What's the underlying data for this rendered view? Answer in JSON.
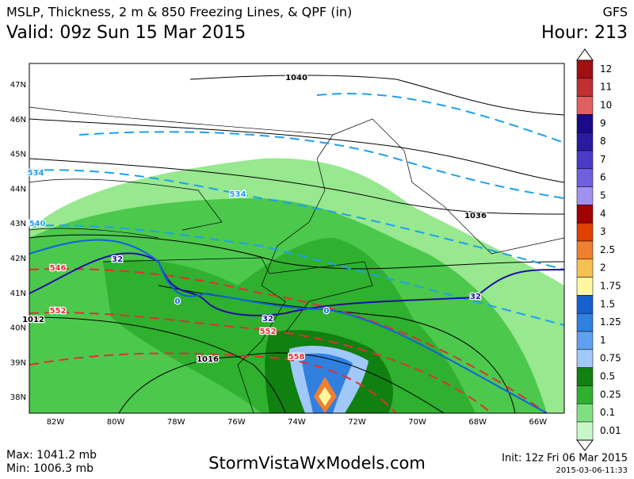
{
  "header": {
    "title": "MSLP, Thickness, 2 m & 850 Freezing Lines, & QPF (in)",
    "model": "GFS",
    "valid": "Valid: 09z Sun 15 Mar 2015",
    "hour": "Hour: 213"
  },
  "map": {
    "lat_labels": [
      "47N",
      "46N",
      "45N",
      "44N",
      "43N",
      "42N",
      "41N",
      "40N",
      "39N",
      "38N"
    ],
    "lon_labels": [
      "82W",
      "80W",
      "78W",
      "76W",
      "74W",
      "72W",
      "70W",
      "68W",
      "66W"
    ],
    "contour_labels": [
      "1040",
      "1036",
      "1012",
      "1016",
      "534",
      "534",
      "540",
      "546",
      "552",
      "552",
      "558",
      "32",
      "32",
      "32",
      "0",
      "0"
    ]
  },
  "legend": {
    "labels": [
      "12",
      "11",
      "10",
      "9",
      "8",
      "7",
      "6",
      "5",
      "4",
      "3",
      "2.5",
      "2",
      "1.75",
      "1.5",
      "1.25",
      "1",
      "0.75",
      "0.5",
      "0.25",
      "0.1",
      "0.01"
    ]
  },
  "footer": {
    "max": "Max: 1041.2 mb",
    "min": "Min: 1006.3 mb",
    "site": "StormVistaWxModels.com",
    "init": "Init: 12z Fri 06 Mar 2015",
    "stamp": "2015-03-06-11:33"
  }
}
